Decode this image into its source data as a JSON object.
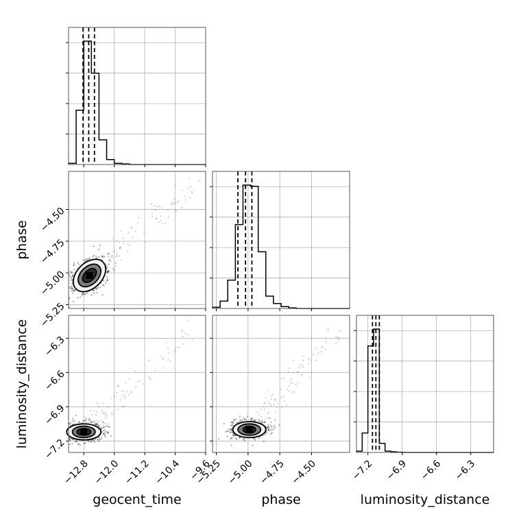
{
  "chart_data": {
    "type": "corner",
    "parameters": [
      {
        "name": "geocent_time",
        "label": "geocent_time",
        "range": [
          -13.2,
          -9.6
        ],
        "ticks": [
          -12.8,
          -12.0,
          -11.2,
          -10.4,
          -9.6
        ],
        "tick_labels": [
          "−12.8",
          "−12.0",
          "−11.2",
          "−10.4",
          "−9.6"
        ],
        "quantiles": [
          -12.82,
          -12.67,
          -12.52
        ],
        "mode": -12.65
      },
      {
        "name": "phase",
        "label": "phase",
        "range": [
          -5.28,
          -4.2
        ],
        "ticks": [
          -5.25,
          -5.0,
          -4.75,
          -4.5
        ],
        "tick_labels": [
          "−5.25",
          "−5.00",
          "−4.75",
          "−4.50"
        ],
        "quantiles": [
          -5.08,
          -5.02,
          -4.97
        ],
        "mode": -5.03
      },
      {
        "name": "luminosity_distance",
        "label": "luminosity_distance",
        "range": [
          -7.3,
          -6.1
        ],
        "ticks": [
          -7.2,
          -6.9,
          -6.6,
          -6.3
        ],
        "tick_labels": [
          "−7.2",
          "−6.9",
          "−6.6",
          "−6.3"
        ],
        "quantiles": [
          -7.16,
          -7.13,
          -7.1
        ],
        "mode": -7.12
      }
    ],
    "histograms": [
      {
        "param": "geocent_time",
        "bin_edges": [
          -13.2,
          -13.0,
          -12.8,
          -12.6,
          -12.4,
          -12.2,
          -12.0,
          -11.8,
          -11.6,
          -11.4,
          -11.2,
          -11.0,
          -10.8,
          -10.6,
          -10.4,
          -10.2,
          -10.0,
          -9.8,
          -9.6
        ],
        "counts": [
          0.01,
          0.44,
          1.0,
          0.74,
          0.2,
          0.04,
          0.01,
          0.005,
          0,
          0,
          0,
          0,
          0,
          0,
          0,
          0,
          0,
          0
        ]
      },
      {
        "param": "phase",
        "bin_edges": [
          -5.28,
          -5.22,
          -5.16,
          -5.1,
          -5.04,
          -4.98,
          -4.92,
          -4.86,
          -4.8,
          -4.74,
          -4.68,
          -4.62,
          -4.56,
          -4.5,
          -4.44,
          -4.38,
          -4.32,
          -4.26,
          -4.2
        ],
        "counts": [
          0.01,
          0.06,
          0.23,
          0.68,
          1.0,
          0.99,
          0.46,
          0.1,
          0.04,
          0.015,
          0.005,
          0,
          0,
          0,
          0,
          0,
          0,
          0
        ]
      },
      {
        "param": "luminosity_distance",
        "bin_edges": [
          -7.3,
          -7.25,
          -7.2,
          -7.15,
          -7.1,
          -7.05,
          -7.0,
          -6.95,
          -6.9,
          -6.85,
          -6.8,
          -6.75,
          -6.7,
          -6.65,
          -6.6,
          -6.55,
          -6.5,
          -6.45,
          -6.4,
          -6.35,
          -6.3,
          -6.25,
          -6.2,
          -6.15,
          -6.1
        ],
        "counts": [
          0.01,
          0.15,
          0.82,
          0.95,
          0.07,
          0.01,
          0.005,
          0.002,
          0,
          0,
          0,
          0,
          0,
          0,
          0,
          0,
          0,
          0,
          0,
          0,
          0,
          0,
          0,
          0
        ]
      }
    ],
    "pairs": [
      {
        "x": "geocent_time",
        "y": "phase",
        "center": [
          -12.65,
          -5.02
        ],
        "contour_levels": [
          {
            "rx": 0.22,
            "ry": 0.04
          },
          {
            "rx": 0.35,
            "ry": 0.07
          },
          {
            "rx": 0.5,
            "ry": 0.1
          }
        ],
        "tilt_deg": -45,
        "tail_to": [
          -10.0,
          -4.32
        ]
      },
      {
        "x": "geocent_time",
        "y": "luminosity_distance",
        "center": [
          -12.8,
          -7.12
        ],
        "contour_levels": [
          {
            "rx": 0.18,
            "ry": 0.03
          },
          {
            "rx": 0.3,
            "ry": 0.05
          },
          {
            "rx": 0.45,
            "ry": 0.07
          }
        ],
        "tilt_deg": 0,
        "tail_to": [
          -10.0,
          -6.25
        ]
      },
      {
        "x": "phase",
        "y": "luminosity_distance",
        "center": [
          -4.99,
          -7.1
        ],
        "contour_levels": [
          {
            "rx": 0.05,
            "ry": 0.03
          },
          {
            "rx": 0.09,
            "ry": 0.05
          },
          {
            "rx": 0.13,
            "ry": 0.07
          }
        ],
        "tilt_deg": 0,
        "tail_to": [
          -4.3,
          -6.25
        ]
      }
    ]
  }
}
